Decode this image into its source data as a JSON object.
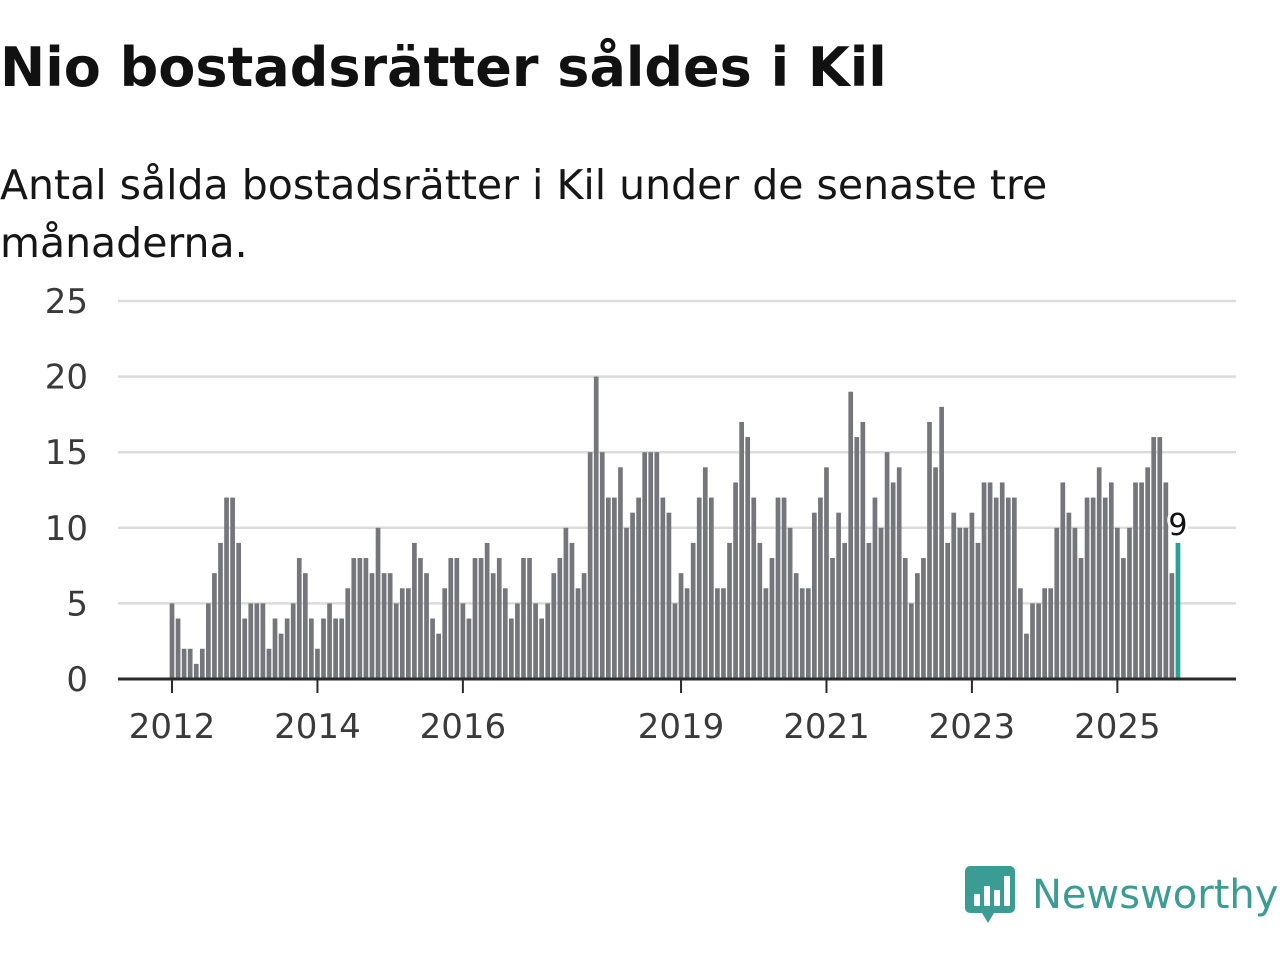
{
  "title": "Nio bostadsrätter såldes i Kil",
  "subtitle": "Antal sålda bostadsrätter i Kil under de senaste tre månaderna.",
  "brand": {
    "name": "Newsworthy",
    "color": "#3a9c93",
    "icon": "newsworthy-logo-icon"
  },
  "colors": {
    "bar": "#75767c",
    "highlight": "#27a394",
    "grid": "#dcdcdc",
    "axis": "#2a2a2a",
    "text": "#3a3a3a"
  },
  "chart_data": {
    "type": "bar",
    "title": "Nio bostadsrätter såldes i Kil",
    "xlabel": "",
    "ylabel": "",
    "ylim": [
      0,
      25
    ],
    "yticks": [
      "0",
      "5",
      "10",
      "15",
      "20",
      "25"
    ],
    "xticks": [
      "2012",
      "2014",
      "2016",
      "2019",
      "2021",
      "2023",
      "2025"
    ],
    "grid": true,
    "start": "2012-01",
    "end": "2025-11",
    "series": [
      {
        "name": "Antal sålda bostadsrätter",
        "values": [
          5,
          4,
          2,
          2,
          1,
          2,
          5,
          7,
          9,
          12,
          12,
          9,
          4,
          5,
          5,
          5,
          2,
          4,
          3,
          4,
          5,
          8,
          7,
          4,
          2,
          4,
          5,
          4,
          4,
          6,
          8,
          8,
          8,
          7,
          10,
          7,
          7,
          5,
          6,
          6,
          9,
          8,
          7,
          4,
          3,
          6,
          8,
          8,
          5,
          4,
          8,
          8,
          9,
          7,
          8,
          6,
          4,
          5,
          8,
          8,
          5,
          4,
          5,
          7,
          8,
          10,
          9,
          6,
          7,
          15,
          20,
          15,
          12,
          12,
          14,
          10,
          11,
          12,
          15,
          15,
          15,
          12,
          11,
          5,
          7,
          6,
          9,
          12,
          14,
          12,
          6,
          6,
          9,
          13,
          17,
          16,
          12,
          9,
          6,
          8,
          12,
          12,
          10,
          7,
          6,
          6,
          11,
          12,
          14,
          8,
          11,
          9,
          19,
          16,
          17,
          9,
          12,
          10,
          15,
          13,
          14,
          8,
          5,
          7,
          8,
          17,
          14,
          18,
          9,
          11,
          10,
          10,
          11,
          9,
          13,
          13,
          12,
          13,
          12,
          12,
          6,
          3,
          5,
          5,
          6,
          6,
          10,
          13,
          11,
          10,
          8,
          12,
          12,
          14,
          12,
          13,
          10,
          8,
          10,
          13,
          13,
          14,
          16,
          16,
          13,
          7,
          9
        ]
      }
    ],
    "highlight": {
      "label": "9",
      "value": 9,
      "period": "2025-11"
    }
  }
}
